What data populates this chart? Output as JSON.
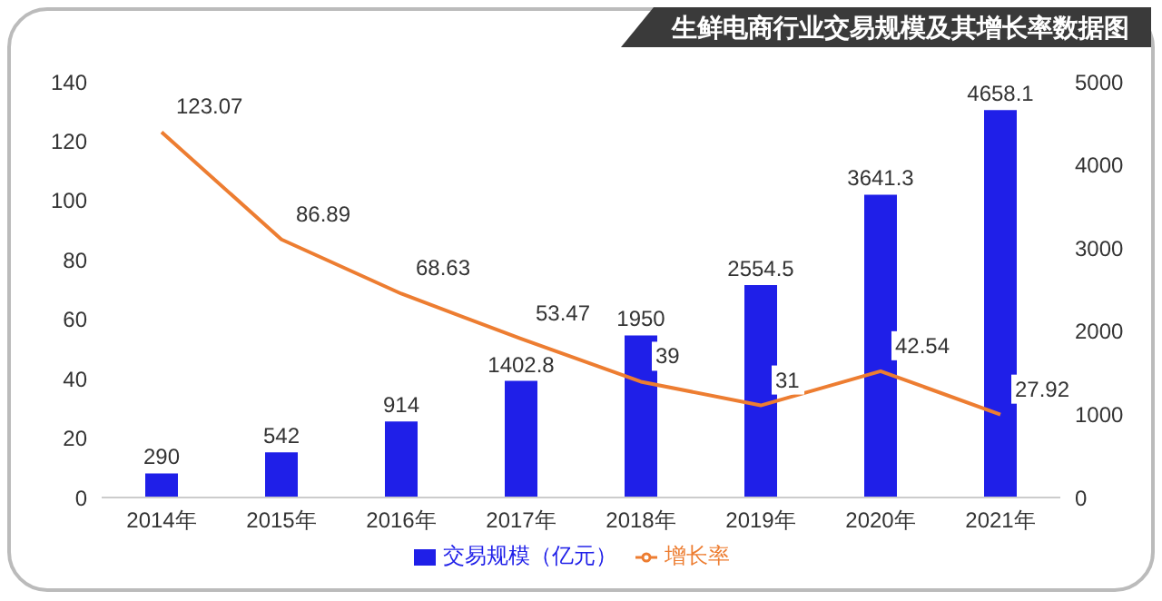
{
  "chart_data": {
    "type": "bar",
    "title": "生鲜电商行业交易规模及其增长率数据图",
    "categories": [
      "2014年",
      "2015年",
      "2016年",
      "2017年",
      "2018年",
      "2019年",
      "2020年",
      "2021年"
    ],
    "series": [
      {
        "name": "交易规模（亿元）",
        "axis": "y2",
        "color": "#1f1fe8",
        "values": [
          290,
          542,
          914,
          1402.8,
          1950,
          2554.5,
          3641.3,
          4658.1
        ]
      },
      {
        "name": "增长率",
        "type": "line",
        "axis": "y",
        "color": "#ed7d31",
        "values": [
          123.07,
          86.89,
          68.63,
          53.47,
          39,
          31,
          42.54,
          27.92
        ]
      }
    ],
    "ylim": [
      0,
      140
    ],
    "yticks": [
      0,
      20,
      40,
      60,
      80,
      100,
      120,
      140
    ],
    "y2lim": [
      0,
      5000
    ],
    "y2ticks": [
      0,
      1000,
      2000,
      3000,
      4000,
      5000
    ],
    "data_labels": true,
    "legend": "bottom",
    "grid": false,
    "marker": "none",
    "line_style": "solid"
  }
}
